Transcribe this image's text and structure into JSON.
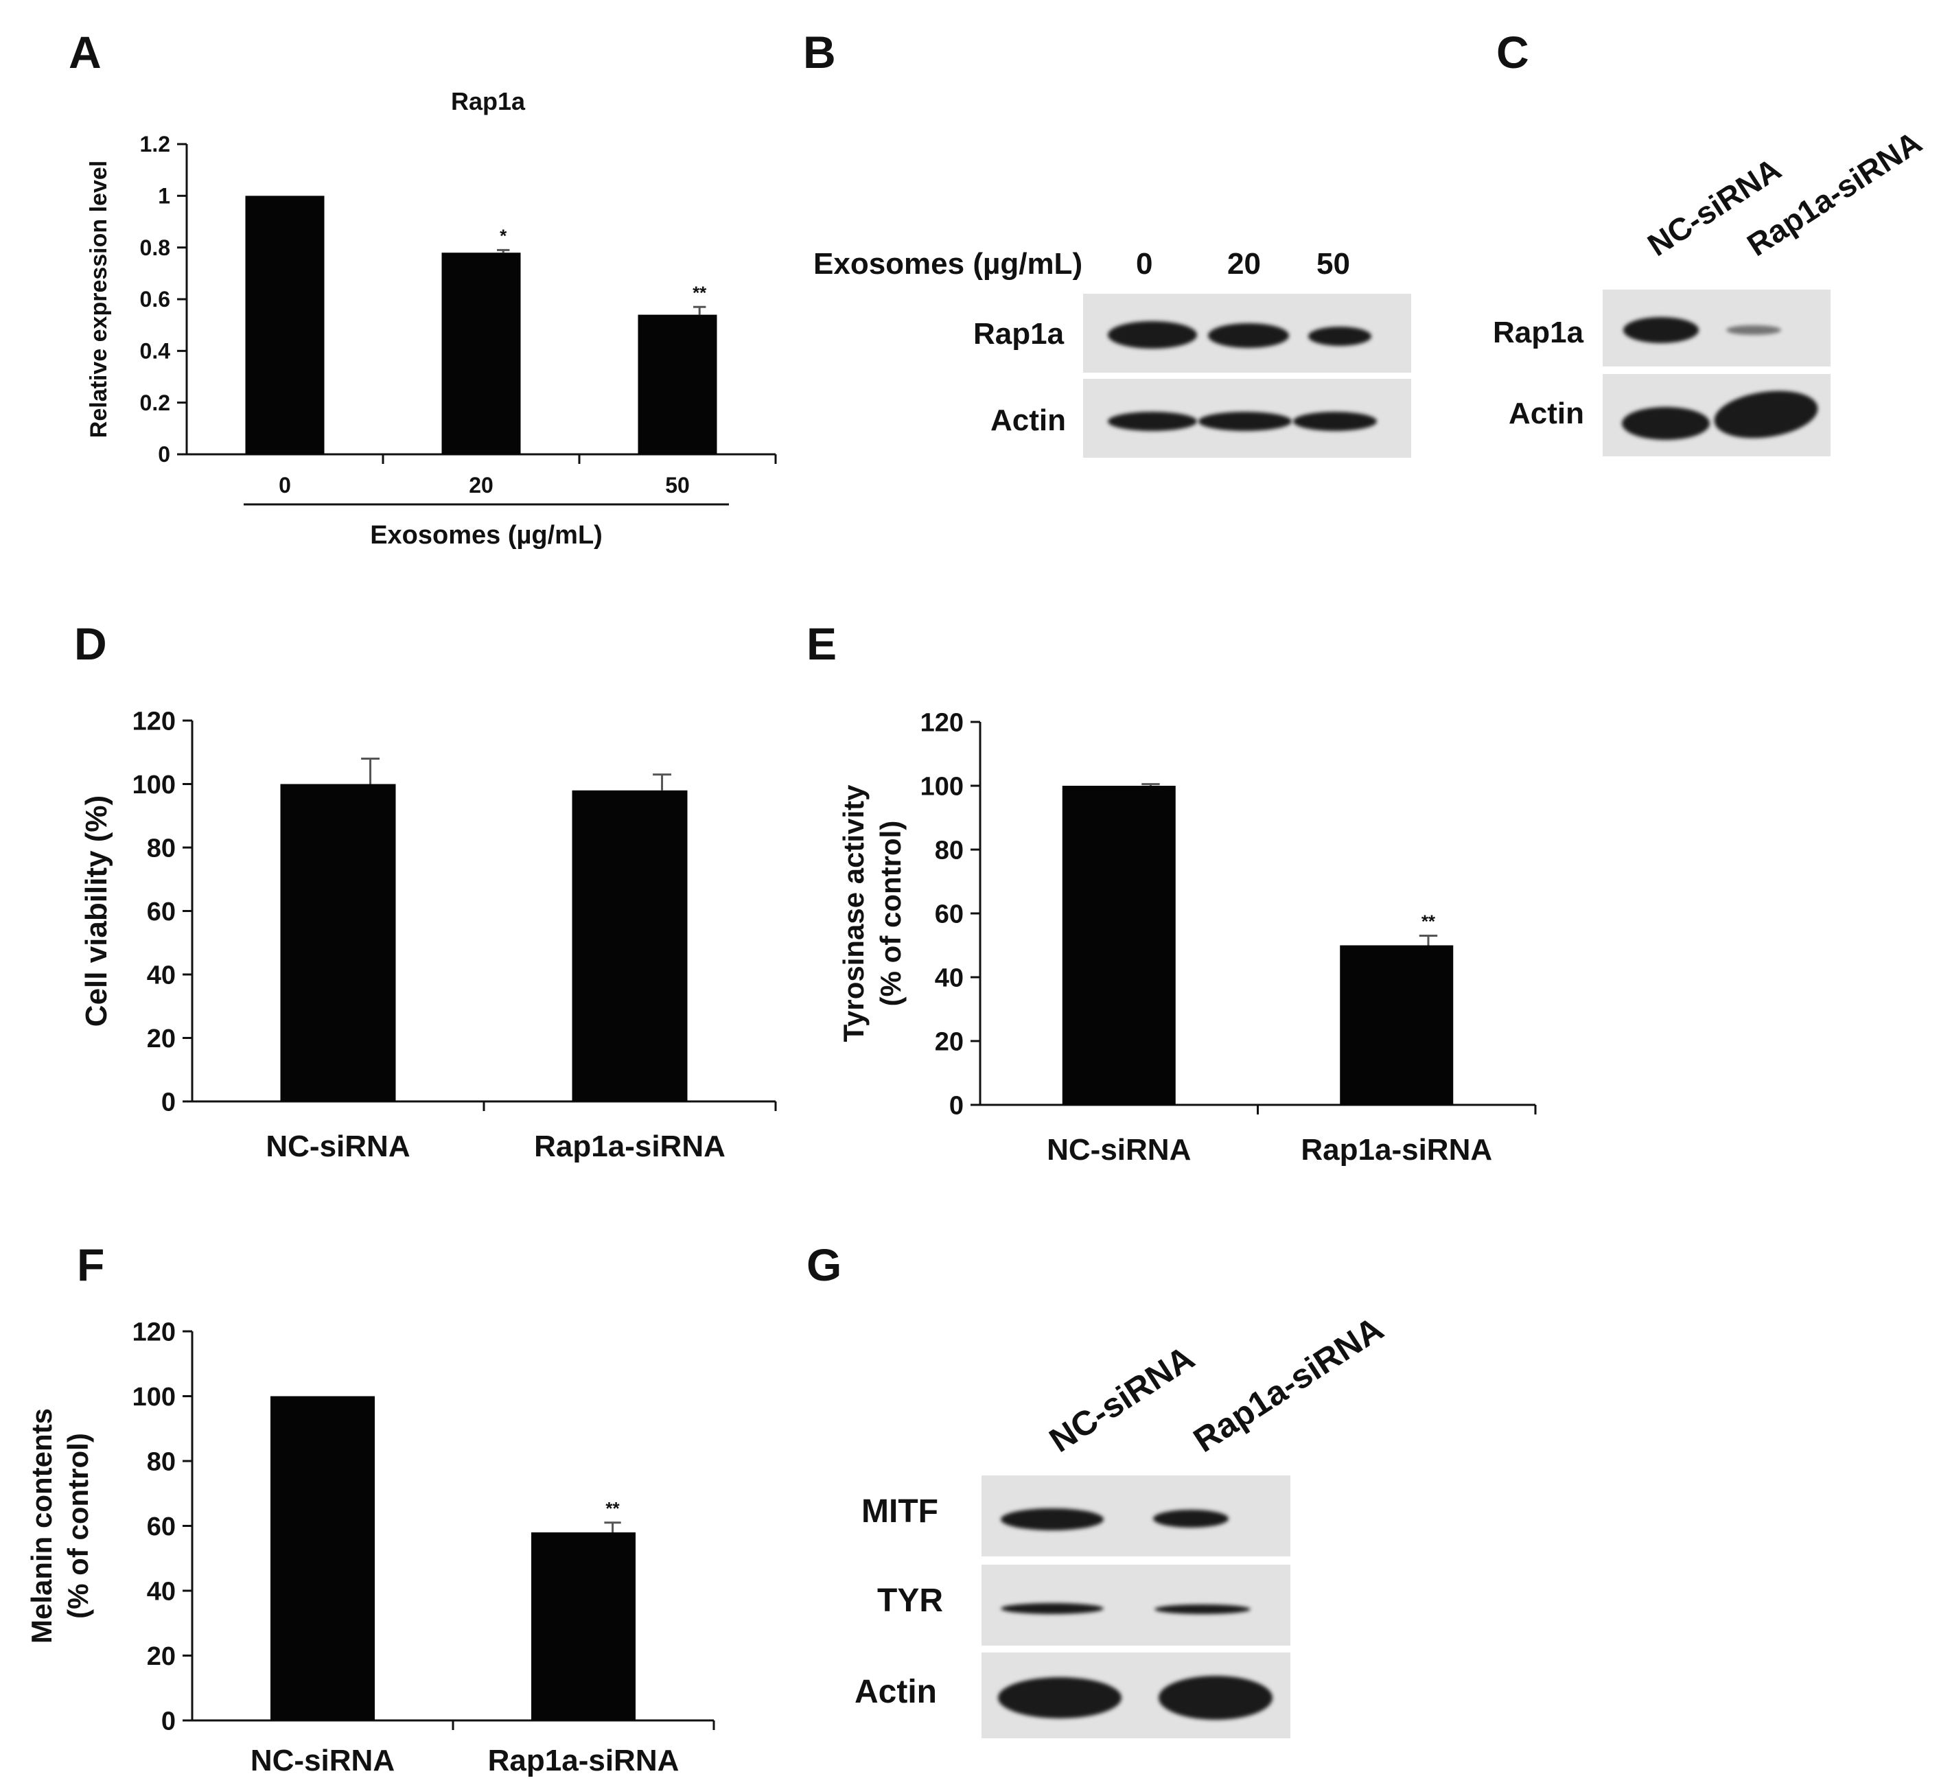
{
  "panels": {
    "A": "A",
    "B": "B",
    "C": "C",
    "D": "D",
    "E": "E",
    "F": "F",
    "G": "G"
  },
  "chart_data": [
    {
      "panel": "A",
      "type": "bar",
      "title": "Rap1a",
      "categories": [
        "0",
        "20",
        "50"
      ],
      "values": [
        1.0,
        0.78,
        0.54
      ],
      "errors": [
        0.0,
        0.01,
        0.03
      ],
      "significance": [
        "",
        "*",
        "**"
      ],
      "xlabel": "Exosomes (µg/mL)",
      "ylabel": "Relative expression level",
      "ylim": [
        0,
        1.2
      ],
      "yticks": [
        "0",
        "0.2",
        "0.4",
        "0.6",
        "0.8",
        "1",
        "1.2"
      ],
      "legend": "none"
    },
    {
      "panel": "D",
      "type": "bar",
      "categories": [
        "NC-siRNA",
        "Rap1a-siRNA"
      ],
      "values": [
        100,
        98
      ],
      "errors": [
        8,
        5
      ],
      "significance": [
        "",
        ""
      ],
      "xlabel": "",
      "ylabel": "Cell viability (%)",
      "ylim": [
        0,
        120
      ],
      "yticks": [
        "0",
        "20",
        "40",
        "60",
        "80",
        "100",
        "120"
      ],
      "legend": "none"
    },
    {
      "panel": "E",
      "type": "bar",
      "categories": [
        "NC-siRNA",
        "Rap1a-siRNA"
      ],
      "values": [
        100,
        50
      ],
      "errors": [
        0.5,
        3
      ],
      "significance": [
        "",
        "**"
      ],
      "xlabel": "",
      "ylabel": "Tyrosinase activity",
      "ylabel2": "(% of control)",
      "ylim": [
        0,
        120
      ],
      "yticks": [
        "0",
        "20",
        "40",
        "60",
        "80",
        "100",
        "120"
      ],
      "legend": "none"
    },
    {
      "panel": "F",
      "type": "bar",
      "categories": [
        "NC-siRNA",
        "Rap1a-siRNA"
      ],
      "values": [
        100,
        58
      ],
      "errors": [
        0,
        3
      ],
      "significance": [
        "",
        "**"
      ],
      "xlabel": "",
      "ylabel": "Melanin contents",
      "ylabel2": "(% of control)",
      "ylim": [
        0,
        120
      ],
      "yticks": [
        "0",
        "20",
        "40",
        "60",
        "80",
        "100",
        "120"
      ],
      "legend": "none"
    }
  ],
  "blots": {
    "B": {
      "header_label": "Exosomes (µg/mL)",
      "lanes": [
        "0",
        "20",
        "50"
      ],
      "rows": [
        "Rap1a",
        "Actin"
      ]
    },
    "C": {
      "lanes": [
        "NC-siRNA",
        "Rap1a-siRNA"
      ],
      "rows": [
        "Rap1a",
        "Actin"
      ]
    },
    "G": {
      "lanes": [
        "NC-siRNA",
        "Rap1a-siRNA"
      ],
      "rows": [
        "MITF",
        "TYR",
        "Actin"
      ]
    }
  }
}
